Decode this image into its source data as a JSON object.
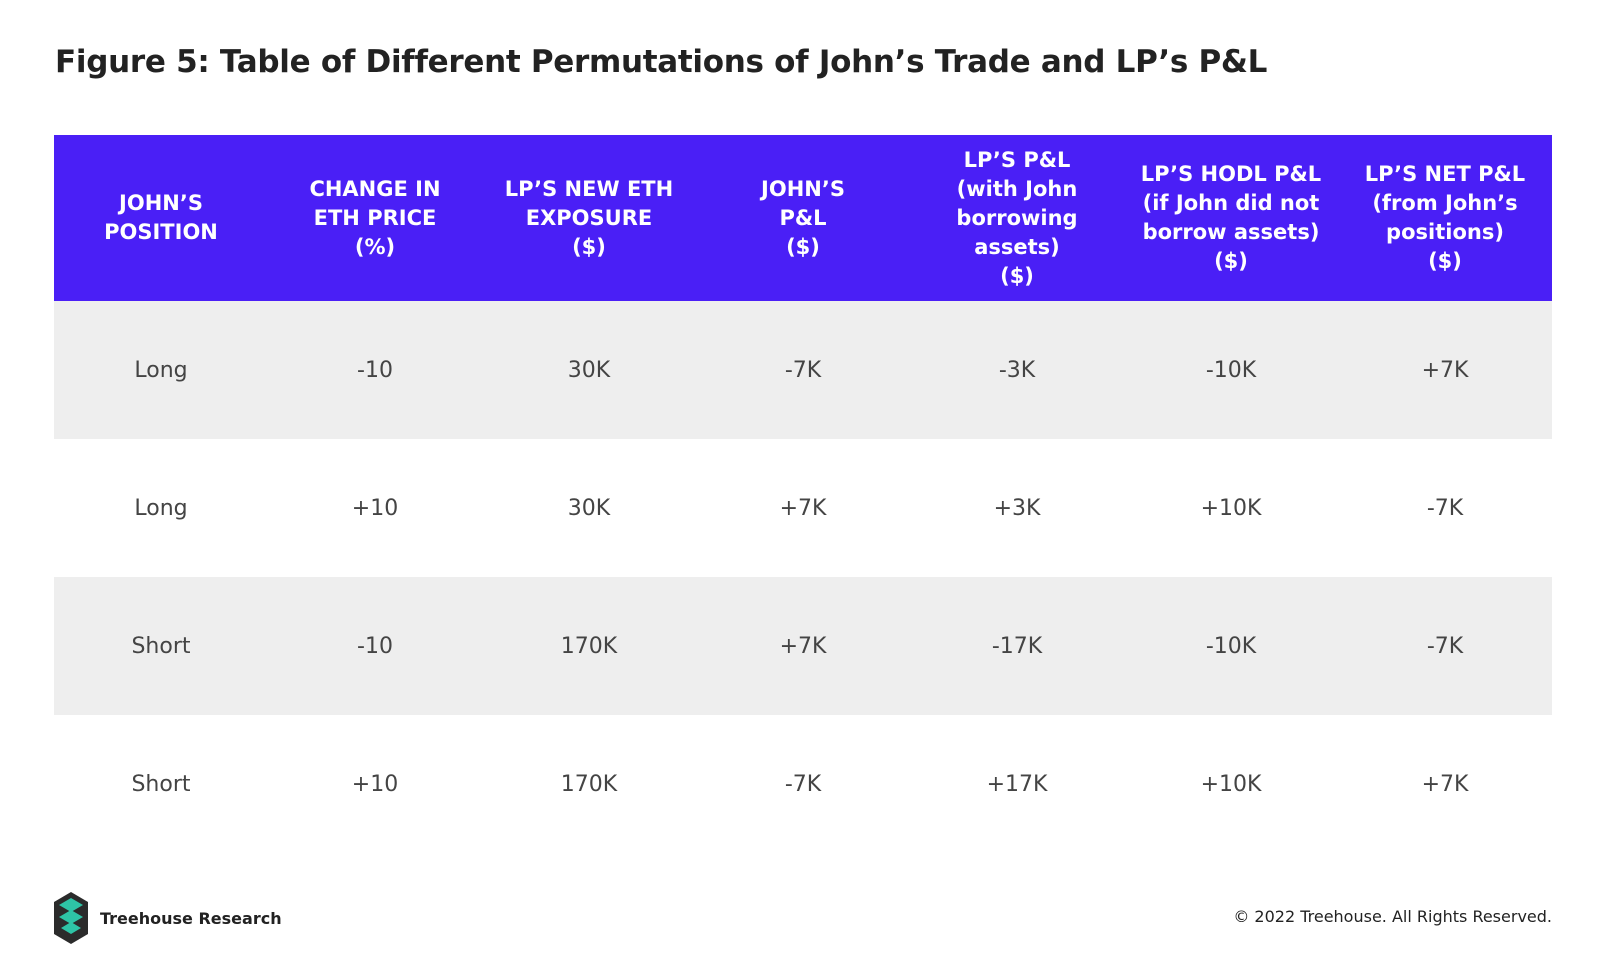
{
  "title": "Figure 5: Table of Different Permutations of John’s Trade and LP’s P&L",
  "colors": {
    "header_bg": "#4a1ff6",
    "header_text": "#ffffff",
    "shaded_row": "#eeeeee",
    "logo_teal": "#2ec4a6",
    "logo_dark": "#2b2b2b"
  },
  "table": {
    "headers": [
      "JOHN’S\nPOSITION",
      "CHANGE IN\nETH PRICE\n(%)",
      "LP’S NEW ETH\nEXPOSURE\n($)",
      "JOHN’S\nP&L\n($)",
      "LP’S P&L\n(with John\nborrowing assets)\n($)",
      "LP’S HODL P&L\n(if John did not\nborrow assets)\n($)",
      "LP’S NET P&L\n(from John’s\npositions)\n($)"
    ],
    "rows": [
      [
        "Long",
        "-10",
        "30K",
        "-7K",
        "-3K",
        "-10K",
        "+7K"
      ],
      [
        "Long",
        "+10",
        "30K",
        "+7K",
        "+3K",
        "+10K",
        "-7K"
      ],
      [
        "Short",
        "-10",
        "170K",
        "+7K",
        "-17K",
        "-10K",
        "-7K"
      ],
      [
        "Short",
        "+10",
        "170K",
        "-7K",
        "+17K",
        "+10K",
        "+7K"
      ]
    ]
  },
  "footer": {
    "brand": "Treehouse Research",
    "logo_icon": "treehouse-logo-icon",
    "copyright": "© 2022 Treehouse. All Rights Reserved."
  }
}
